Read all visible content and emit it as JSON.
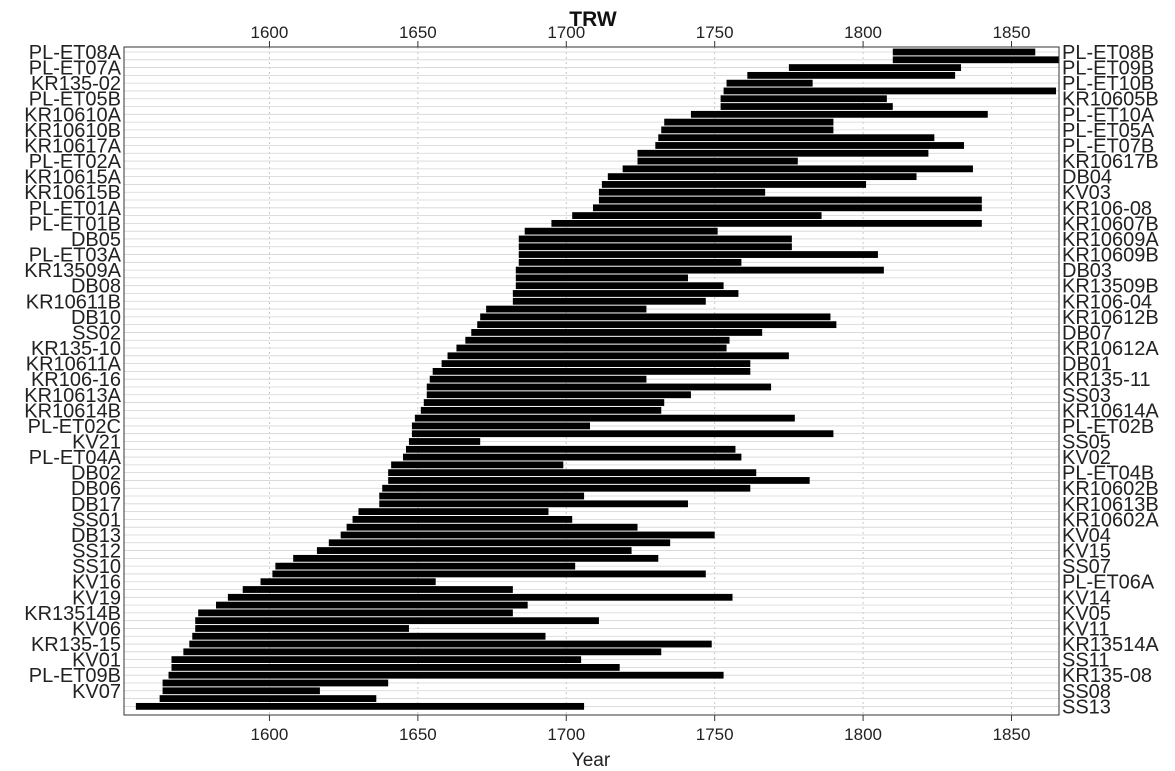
{
  "chart_data": {
    "type": "bar",
    "subtype": "segments",
    "title": "TRW",
    "xlabel": "Year",
    "xlim": [
      1551,
      1866
    ],
    "xticks": [
      1600,
      1650,
      1700,
      1750,
      1800,
      1850
    ],
    "xgrid": true,
    "series_order": "top-to-bottom, labels alternate left/right",
    "segments": [
      {
        "start": 1810,
        "end": 1858
      },
      {
        "start": 1810,
        "end": 1866
      },
      {
        "start": 1775,
        "end": 1833
      },
      {
        "start": 1761,
        "end": 1831
      },
      {
        "start": 1754,
        "end": 1783
      },
      {
        "start": 1753,
        "end": 1865
      },
      {
        "start": 1752,
        "end": 1808
      },
      {
        "start": 1752,
        "end": 1810
      },
      {
        "start": 1742,
        "end": 1842
      },
      {
        "start": 1733,
        "end": 1790
      },
      {
        "start": 1732,
        "end": 1790
      },
      {
        "start": 1731,
        "end": 1824
      },
      {
        "start": 1730,
        "end": 1834
      },
      {
        "start": 1724,
        "end": 1822
      },
      {
        "start": 1724,
        "end": 1778
      },
      {
        "start": 1719,
        "end": 1837
      },
      {
        "start": 1714,
        "end": 1818
      },
      {
        "start": 1712,
        "end": 1801
      },
      {
        "start": 1711,
        "end": 1767
      },
      {
        "start": 1711,
        "end": 1840
      },
      {
        "start": 1709,
        "end": 1840
      },
      {
        "start": 1702,
        "end": 1786
      },
      {
        "start": 1695,
        "end": 1840
      },
      {
        "start": 1686,
        "end": 1751
      },
      {
        "start": 1684,
        "end": 1776
      },
      {
        "start": 1684,
        "end": 1776
      },
      {
        "start": 1684,
        "end": 1805
      },
      {
        "start": 1684,
        "end": 1759
      },
      {
        "start": 1683,
        "end": 1807
      },
      {
        "start": 1683,
        "end": 1741
      },
      {
        "start": 1683,
        "end": 1753
      },
      {
        "start": 1682,
        "end": 1758
      },
      {
        "start": 1682,
        "end": 1747
      },
      {
        "start": 1673,
        "end": 1727
      },
      {
        "start": 1671,
        "end": 1789
      },
      {
        "start": 1670,
        "end": 1791
      },
      {
        "start": 1668,
        "end": 1766
      },
      {
        "start": 1666,
        "end": 1755
      },
      {
        "start": 1663,
        "end": 1754
      },
      {
        "start": 1660,
        "end": 1775
      },
      {
        "start": 1658,
        "end": 1762
      },
      {
        "start": 1655,
        "end": 1762
      },
      {
        "start": 1654,
        "end": 1727
      },
      {
        "start": 1653,
        "end": 1769
      },
      {
        "start": 1653,
        "end": 1742
      },
      {
        "start": 1652,
        "end": 1733
      },
      {
        "start": 1651,
        "end": 1732
      },
      {
        "start": 1649,
        "end": 1777
      },
      {
        "start": 1648,
        "end": 1708
      },
      {
        "start": 1648,
        "end": 1790
      },
      {
        "start": 1647,
        "end": 1671
      },
      {
        "start": 1646,
        "end": 1757
      },
      {
        "start": 1645,
        "end": 1759
      },
      {
        "start": 1641,
        "end": 1699
      },
      {
        "start": 1640,
        "end": 1764
      },
      {
        "start": 1640,
        "end": 1782
      },
      {
        "start": 1638,
        "end": 1762
      },
      {
        "start": 1637,
        "end": 1706
      },
      {
        "start": 1637,
        "end": 1741
      },
      {
        "start": 1630,
        "end": 1694
      },
      {
        "start": 1628,
        "end": 1702
      },
      {
        "start": 1626,
        "end": 1724
      },
      {
        "start": 1624,
        "end": 1750
      },
      {
        "start": 1620,
        "end": 1735
      },
      {
        "start": 1616,
        "end": 1722
      },
      {
        "start": 1608,
        "end": 1731
      },
      {
        "start": 1602,
        "end": 1703
      },
      {
        "start": 1601,
        "end": 1747
      },
      {
        "start": 1597,
        "end": 1656
      },
      {
        "start": 1591,
        "end": 1682
      },
      {
        "start": 1586,
        "end": 1756
      },
      {
        "start": 1582,
        "end": 1687
      },
      {
        "start": 1576,
        "end": 1682
      },
      {
        "start": 1575,
        "end": 1711
      },
      {
        "start": 1575,
        "end": 1647
      },
      {
        "start": 1574,
        "end": 1693
      },
      {
        "start": 1573,
        "end": 1749
      },
      {
        "start": 1571,
        "end": 1732
      },
      {
        "start": 1567,
        "end": 1705
      },
      {
        "start": 1567,
        "end": 1718
      },
      {
        "start": 1566,
        "end": 1753
      },
      {
        "start": 1564,
        "end": 1640
      },
      {
        "start": 1564,
        "end": 1617
      },
      {
        "start": 1563,
        "end": 1636
      },
      {
        "start": 1555,
        "end": 1706
      }
    ],
    "labels_left": [
      "PL-ET08A",
      "PL-ET07A",
      "KR135-02",
      "PL-ET05B",
      "KR10610A",
      "KR10610B",
      "KR10617A",
      "PL-ET02A",
      "KR10615A",
      "KR10615B",
      "PL-ET01A",
      "PL-ET01B",
      "DB05",
      "PL-ET03A",
      "KR13509A",
      "DB08",
      "KR10611B",
      "DB10",
      "SS02",
      "KR135-10",
      "KR10611A",
      "KR106-16",
      "KR10613A",
      "KR10614B",
      "PL-ET02C",
      "KV21",
      "PL-ET04A",
      "DB02",
      "DB06",
      "DB17",
      "SS01",
      "DB13",
      "SS12",
      "SS10",
      "KV16",
      "KV19",
      "KR13514B",
      "KV06",
      "KR135-15",
      "KV01",
      "PL-ET09B",
      "KV07"
    ],
    "labels_right": [
      "PL-ET08B",
      "PL-ET09B",
      "PL-ET10B",
      "KR10605B",
      "PL-ET10A",
      "PL-ET05A",
      "PL-ET07B",
      "KR10617B",
      "DB04",
      "KV03",
      "KR106-08",
      "KR10607B",
      "KR10609A",
      "KR10609B",
      "DB03",
      "KR13509B",
      "KR106-04",
      "KR10612B",
      "DB07",
      "KR10612A",
      "DB01",
      "KR135-11",
      "SS03",
      "KR10614A",
      "PL-ET02B",
      "SS05",
      "KV02",
      "PL-ET04B",
      "KR10602B",
      "KR10613B",
      "KR10602A",
      "KV04",
      "KV15",
      "SS07",
      "PL-ET06A",
      "KV14",
      "KV05",
      "KV11",
      "KR13514A",
      "SS11",
      "KR135-08",
      "SS08",
      "SS13"
    ]
  }
}
